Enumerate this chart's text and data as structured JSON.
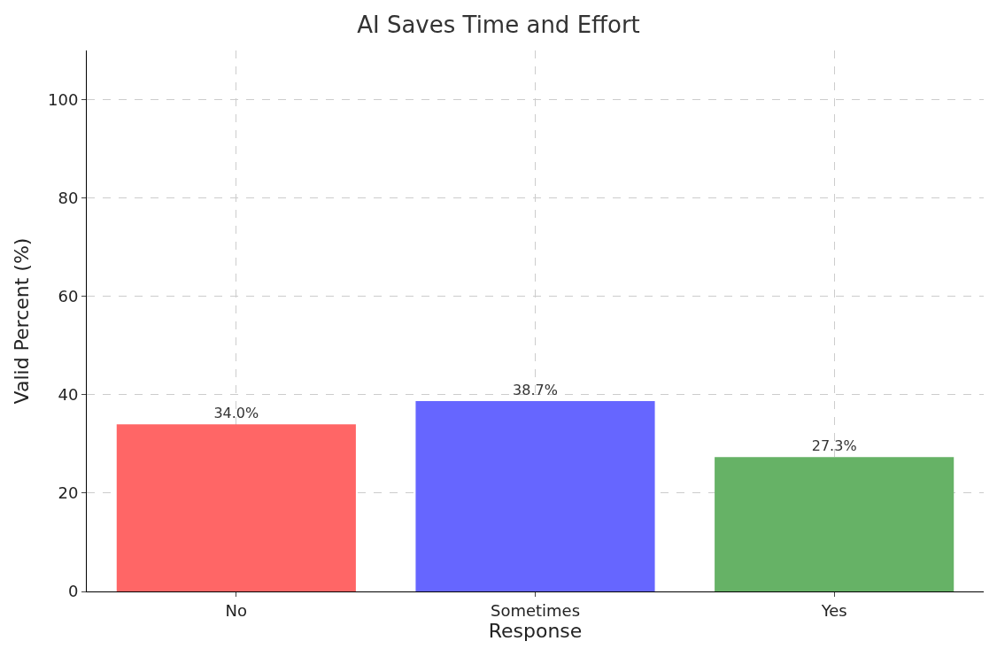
{
  "chart_data": {
    "type": "bar",
    "title": "AI Saves Time and Effort",
    "xlabel": "Response",
    "ylabel": "Valid Percent (%)",
    "categories": [
      "No",
      "Sometimes",
      "Yes"
    ],
    "values": [
      34.0,
      38.7,
      27.3
    ],
    "colors": [
      "#ff6666",
      "#6666ff",
      "#66b266"
    ],
    "value_labels": [
      "34.0%",
      "38.7%",
      "27.3%"
    ],
    "ylim": [
      0,
      110
    ],
    "yticks": [
      0,
      20,
      40,
      60,
      80,
      100
    ],
    "grid": true
  }
}
